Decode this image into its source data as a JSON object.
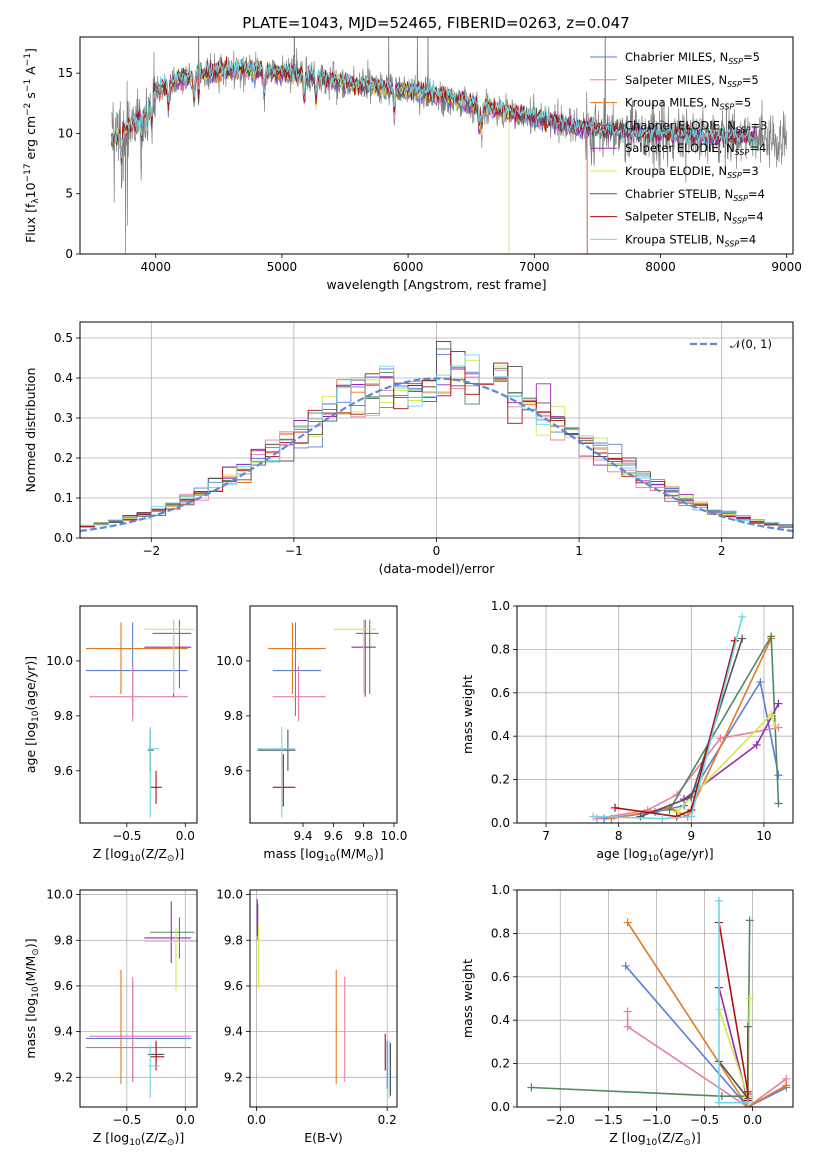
{
  "title": "PLATE=1043, MJD=52465, FIBERID=0263, z=0.047",
  "series": [
    {
      "name": "Chabrier MILES",
      "nssp": "5",
      "color": "#5b7fd9"
    },
    {
      "name": "Salpeter MILES",
      "nssp": "5",
      "color": "#e87fa8"
    },
    {
      "name": "Kroupa MILES",
      "nssp": "5",
      "color": "#e07b22"
    },
    {
      "name": "Chabrier ELODIE",
      "nssp": "3",
      "color": "#4f8a5f"
    },
    {
      "name": "Salpeter ELODIE",
      "nssp": "4",
      "color": "#9b27b5"
    },
    {
      "name": "Kroupa ELODIE",
      "nssp": "3",
      "color": "#d4e84d"
    },
    {
      "name": "Chabrier STELIB",
      "nssp": "4",
      "color": "#555555"
    },
    {
      "name": "Salpeter STELIB",
      "nssp": "4",
      "color": "#b00f0f"
    },
    {
      "name": "Kroupa STELIB",
      "nssp": "4",
      "color": "#6fd6e8"
    }
  ],
  "chart_data": [
    {
      "id": "spectrum",
      "type": "line",
      "xlabel": "wavelength [Angstrom, rest frame]",
      "ylabel": "Flux [f_λ 10^-17 erg cm^-2 s^-1 A^-1]",
      "xlim": [
        3400,
        9050
      ],
      "ylim": [
        0,
        18
      ],
      "xticks": [
        4000,
        5000,
        6000,
        7000,
        8000,
        9000
      ],
      "yticks": [
        0,
        5,
        10,
        15
      ],
      "observed_color": "#808080",
      "continuum": [
        [
          3650,
          9.5
        ],
        [
          3800,
          10.5
        ],
        [
          3900,
          11.5
        ],
        [
          4000,
          13.5
        ],
        [
          4200,
          14.5
        ],
        [
          4500,
          15.2
        ],
        [
          4800,
          15.3
        ],
        [
          5000,
          15.0
        ],
        [
          5200,
          14.8
        ],
        [
          5500,
          14.2
        ],
        [
          5800,
          13.8
        ],
        [
          6000,
          13.6
        ],
        [
          6300,
          13.0
        ],
        [
          6600,
          12.2
        ],
        [
          6900,
          11.5
        ],
        [
          7200,
          10.8
        ],
        [
          7500,
          10.3
        ],
        [
          7800,
          10.0
        ],
        [
          8100,
          9.9
        ],
        [
          8400,
          9.7
        ],
        [
          8750,
          9.6
        ],
        [
          9000,
          9.5
        ]
      ],
      "model_end": [
        7420,
        7420,
        7420,
        8750,
        8750,
        6800,
        8750,
        8750,
        8750
      ],
      "legend_label_suffix": "N_SSP",
      "legend": "upper right"
    },
    {
      "id": "residuals",
      "type": "step",
      "xlabel": "(data-model)/error",
      "ylabel": "Normed distribution",
      "xlim": [
        -2.5,
        2.5
      ],
      "ylim": [
        0,
        0.54
      ],
      "xticks": [
        -2,
        -1,
        0,
        1,
        2
      ],
      "yticks": [
        0.0,
        0.1,
        0.2,
        0.3,
        0.4,
        0.5
      ],
      "bin_width": 0.1,
      "reference_label": "𝒩(0, 1)",
      "reference_color": "#5b8ad9",
      "grid": true,
      "legend": "upper right"
    },
    {
      "id": "age_vs_Z",
      "type": "errorbar",
      "xlabel": "Z [log10(Z/Z⊙)]",
      "ylabel": "age [log10(age/yr)]",
      "xlim": [
        -0.9,
        0.1
      ],
      "ylim": [
        9.41,
        10.2
      ],
      "xticks": [
        -0.5,
        0.0
      ],
      "yticks": [
        9.6,
        9.8,
        10.0
      ],
      "points": [
        {
          "s": 0,
          "x": -0.45,
          "y": 9.965,
          "xlo": -0.85,
          "xhi": 0.02,
          "ylo": 9.8,
          "yhi": 10.14
        },
        {
          "s": 1,
          "x": -0.45,
          "y": 9.87,
          "xlo": -0.82,
          "xhi": 0.02,
          "ylo": 9.78,
          "yhi": 9.98
        },
        {
          "s": 2,
          "x": -0.55,
          "y": 10.045,
          "xlo": -0.85,
          "xhi": 0.02,
          "ylo": 9.88,
          "yhi": 10.14
        },
        {
          "s": 3,
          "x": -0.05,
          "y": 10.1,
          "xlo": -0.28,
          "xhi": 0.05,
          "ylo": 9.9,
          "yhi": 10.15
        },
        {
          "s": 4,
          "x": -0.1,
          "y": 10.05,
          "xlo": -0.35,
          "xhi": 0.05,
          "ylo": 9.87,
          "yhi": 10.15
        },
        {
          "s": 5,
          "x": -0.1,
          "y": 10.115,
          "xlo": -0.35,
          "xhi": 0.08,
          "ylo": 9.88,
          "yhi": 10.15
        },
        {
          "s": 6,
          "x": -0.3,
          "y": 9.675,
          "xlo": -0.32,
          "xhi": -0.27,
          "ylo": 9.6,
          "yhi": 9.75
        },
        {
          "s": 7,
          "x": -0.25,
          "y": 9.54,
          "xlo": -0.3,
          "xhi": -0.2,
          "ylo": 9.48,
          "yhi": 9.6
        },
        {
          "s": 8,
          "x": -0.3,
          "y": 9.68,
          "xlo": -0.32,
          "xhi": -0.22,
          "ylo": 9.43,
          "yhi": 9.76
        }
      ]
    },
    {
      "id": "age_vs_mass",
      "type": "errorbar",
      "xlabel": "mass [log10(M/M⊙)]",
      "ylabel": "",
      "xlim": [
        9.05,
        10.02
      ],
      "ylim": [
        9.41,
        10.2
      ],
      "xticks": [
        9.4,
        9.6,
        9.8,
        10.0
      ],
      "yticks": [
        9.6,
        9.8,
        10.0
      ],
      "points": [
        {
          "s": 0,
          "x": 9.35,
          "y": 9.965,
          "xlo": 9.2,
          "xhi": 9.52,
          "ylo": 9.8,
          "yhi": 10.14
        },
        {
          "s": 1,
          "x": 9.37,
          "y": 9.87,
          "xlo": 9.2,
          "xhi": 9.55,
          "ylo": 9.78,
          "yhi": 9.98
        },
        {
          "s": 2,
          "x": 9.33,
          "y": 10.045,
          "xlo": 9.17,
          "xhi": 9.55,
          "ylo": 9.88,
          "yhi": 10.14
        },
        {
          "s": 3,
          "x": 9.84,
          "y": 10.1,
          "xlo": 9.75,
          "xhi": 9.9,
          "ylo": 9.88,
          "yhi": 10.15
        },
        {
          "s": 4,
          "x": 9.81,
          "y": 10.05,
          "xlo": 9.72,
          "xhi": 9.88,
          "ylo": 9.87,
          "yhi": 10.15
        },
        {
          "s": 5,
          "x": 9.8,
          "y": 10.115,
          "xlo": 9.6,
          "xhi": 9.88,
          "ylo": 9.88,
          "yhi": 10.15
        },
        {
          "s": 6,
          "x": 9.3,
          "y": 9.675,
          "xlo": 9.1,
          "xhi": 9.35,
          "ylo": 9.6,
          "yhi": 9.75
        },
        {
          "s": 7,
          "x": 9.27,
          "y": 9.54,
          "xlo": 9.2,
          "xhi": 9.35,
          "ylo": 9.47,
          "yhi": 9.66
        },
        {
          "s": 8,
          "x": 9.26,
          "y": 9.68,
          "xlo": 9.1,
          "xhi": 9.35,
          "ylo": 9.43,
          "yhi": 9.76
        }
      ]
    },
    {
      "id": "mass_weight_vs_age",
      "type": "line",
      "xlabel": "age [log10(age/yr)]",
      "ylabel": "mass weight",
      "xlim": [
        6.6,
        10.4
      ],
      "ylim": [
        0,
        1.0
      ],
      "xticks": [
        7,
        8,
        9,
        10
      ],
      "yticks": [
        0.0,
        0.2,
        0.4,
        0.6,
        0.8,
        1.0
      ],
      "grid": true,
      "series": [
        {
          "s": 0,
          "x": [
            7.8,
            8.5,
            8.9,
            9.95,
            10.2
          ],
          "y": [
            0.02,
            0.05,
            0.08,
            0.65,
            0.22
          ]
        },
        {
          "s": 1,
          "x": [
            7.7,
            8.4,
            8.8,
            9.4,
            10.2
          ],
          "y": [
            0.02,
            0.06,
            0.13,
            0.39,
            0.44
          ]
        },
        {
          "s": 2,
          "x": [
            7.9,
            8.7,
            8.95,
            10.1
          ],
          "y": [
            0.02,
            0.07,
            0.03,
            0.85
          ]
        },
        {
          "s": 3,
          "x": [
            8.7,
            10.1,
            10.2
          ],
          "y": [
            0.06,
            0.86,
            0.09
          ]
        },
        {
          "s": 4,
          "x": [
            8.9,
            9.9,
            10.2
          ],
          "y": [
            0.11,
            0.36,
            0.55
          ]
        },
        {
          "s": 5,
          "x": [
            8.8,
            10.1,
            10.15
          ],
          "y": [
            0.05,
            0.5,
            0.45
          ]
        },
        {
          "s": 6,
          "x": [
            8.3,
            9.0,
            9.7
          ],
          "y": [
            0.03,
            0.12,
            0.85
          ]
        },
        {
          "s": 7,
          "x": [
            7.95,
            8.8,
            9.0,
            9.6
          ],
          "y": [
            0.07,
            0.03,
            0.06,
            0.84
          ]
        },
        {
          "s": 8,
          "x": [
            7.65,
            8.6,
            9.0,
            9.7
          ],
          "y": [
            0.03,
            0.02,
            0.03,
            0.95
          ]
        }
      ]
    },
    {
      "id": "mass_vs_Z",
      "type": "errorbar",
      "xlabel": "Z [log10(Z/Z⊙)]",
      "ylabel": "mass [log10(M/M⊙)]",
      "xlim": [
        -0.9,
        0.1
      ],
      "ylim": [
        9.07,
        10.02
      ],
      "xticks": [
        -0.5,
        0.0
      ],
      "yticks": [
        9.2,
        9.4,
        9.6,
        9.8,
        10.0
      ],
      "grid": true,
      "points": [
        {
          "s": 0,
          "x": -0.45,
          "y": 9.37,
          "xlo": -0.85,
          "xhi": 0.05,
          "ylo": 9.18,
          "yhi": 9.62
        },
        {
          "s": 1,
          "x": -0.45,
          "y": 9.38,
          "xlo": -0.82,
          "xhi": 0.05,
          "ylo": 9.18,
          "yhi": 9.64
        },
        {
          "s": 2,
          "x": -0.55,
          "y": 9.33,
          "xlo": -0.85,
          "xhi": 0.05,
          "ylo": 9.17,
          "yhi": 9.67
        },
        {
          "s": 3,
          "x": -0.05,
          "y": 9.835,
          "xlo": -0.3,
          "xhi": 0.08,
          "ylo": 9.72,
          "yhi": 9.9
        },
        {
          "s": 4,
          "x": -0.12,
          "y": 9.81,
          "xlo": -0.35,
          "xhi": 0.05,
          "ylo": 9.7,
          "yhi": 9.97
        },
        {
          "s": 5,
          "x": -0.08,
          "y": 9.795,
          "xlo": -0.35,
          "xhi": 0.1,
          "ylo": 9.58,
          "yhi": 9.85
        },
        {
          "s": 6,
          "x": -0.25,
          "y": 9.3,
          "xlo": -0.32,
          "xhi": -0.18,
          "ylo": 9.25,
          "yhi": 9.35
        },
        {
          "s": 7,
          "x": -0.25,
          "y": 9.29,
          "xlo": -0.3,
          "xhi": -0.18,
          "ylo": 9.23,
          "yhi": 9.36
        },
        {
          "s": 8,
          "x": -0.3,
          "y": 9.25,
          "xlo": -0.32,
          "xhi": -0.22,
          "ylo": 9.11,
          "yhi": 9.34
        }
      ]
    },
    {
      "id": "mass_vs_EBV",
      "type": "errorbar",
      "xlabel": "E(B-V)",
      "ylabel": "",
      "xlim": [
        -0.01,
        0.215
      ],
      "ylim": [
        9.07,
        10.02
      ],
      "xticks": [
        0.0,
        0.2
      ],
      "yticks": [
        9.2,
        9.4,
        9.6,
        9.8,
        10.0
      ],
      "grid": true,
      "points": [
        {
          "s": 0,
          "x": 0.2,
          "y": 9.3,
          "xlo": 0.2,
          "xhi": 0.2,
          "ylo": 9.15,
          "yhi": 9.36
        },
        {
          "s": 1,
          "x": 0.135,
          "y": 9.38,
          "xlo": 0.135,
          "xhi": 0.135,
          "ylo": 9.18,
          "yhi": 9.64
        },
        {
          "s": 2,
          "x": 0.122,
          "y": 9.4,
          "xlo": 0.122,
          "xhi": 0.122,
          "ylo": 9.17,
          "yhi": 9.67
        },
        {
          "s": 3,
          "x": 0.002,
          "y": 9.86,
          "xlo": 0.002,
          "xhi": 0.002,
          "ylo": 9.8,
          "yhi": 9.96
        },
        {
          "s": 4,
          "x": 0.001,
          "y": 9.9,
          "xlo": 0.001,
          "xhi": 0.001,
          "ylo": 9.82,
          "yhi": 9.98
        },
        {
          "s": 5,
          "x": 0.003,
          "y": 9.75,
          "xlo": 0.003,
          "xhi": 0.003,
          "ylo": 9.59,
          "yhi": 9.87
        },
        {
          "s": 6,
          "x": 0.205,
          "y": 9.3,
          "xlo": 0.205,
          "xhi": 0.205,
          "ylo": 9.12,
          "yhi": 9.35
        },
        {
          "s": 7,
          "x": 0.197,
          "y": 9.33,
          "xlo": 0.197,
          "xhi": 0.197,
          "ylo": 9.23,
          "yhi": 9.39
        },
        {
          "s": 8,
          "x": 0.203,
          "y": 9.25,
          "xlo": 0.203,
          "xhi": 0.203,
          "ylo": 9.11,
          "yhi": 9.36
        }
      ]
    },
    {
      "id": "mass_weight_vs_Z",
      "type": "line",
      "xlabel": "Z [log10(Z/Z⊙)]",
      "ylabel": "mass weight",
      "xlim": [
        -2.45,
        0.42
      ],
      "ylim": [
        0,
        1.0
      ],
      "xticks": [
        -2.0,
        -1.5,
        -1.0,
        -0.5,
        0.0
      ],
      "yticks": [
        0.0,
        0.2,
        0.4,
        0.6,
        0.8,
        1.0
      ],
      "grid": true,
      "series": [
        {
          "s": 0,
          "x": [
            -1.32,
            -0.05,
            0.35
          ],
          "y": [
            0.65,
            0.0,
            0.09
          ]
        },
        {
          "s": 1,
          "x": [
            -1.3,
            -1.3,
            -0.05,
            0.35
          ],
          "y": [
            0.44,
            0.37,
            0.0,
            0.13
          ]
        },
        {
          "s": 2,
          "x": [
            -1.3,
            -0.05,
            0.35
          ],
          "y": [
            0.85,
            0.0,
            0.1
          ]
        },
        {
          "s": 3,
          "x": [
            -2.3,
            -0.32,
            -0.05,
            -0.03
          ],
          "y": [
            0.09,
            0.05,
            0.05,
            0.86
          ]
        },
        {
          "s": 4,
          "x": [
            -0.35,
            -0.05,
            -0.05
          ],
          "y": [
            0.55,
            0.03,
            0.06
          ]
        },
        {
          "s": 5,
          "x": [
            -0.35,
            -0.05,
            -0.03
          ],
          "y": [
            0.45,
            0.05,
            0.5
          ]
        },
        {
          "s": 6,
          "x": [
            -0.35,
            -0.05,
            -0.05
          ],
          "y": [
            0.21,
            0.04,
            0.37
          ]
        },
        {
          "s": 7,
          "x": [
            -0.35,
            -0.05,
            -0.05
          ],
          "y": [
            0.85,
            0.07,
            0.03
          ]
        },
        {
          "s": 8,
          "x": [
            -0.35,
            -0.35,
            -0.05
          ],
          "y": [
            0.95,
            0.02,
            0.02
          ]
        }
      ]
    }
  ]
}
